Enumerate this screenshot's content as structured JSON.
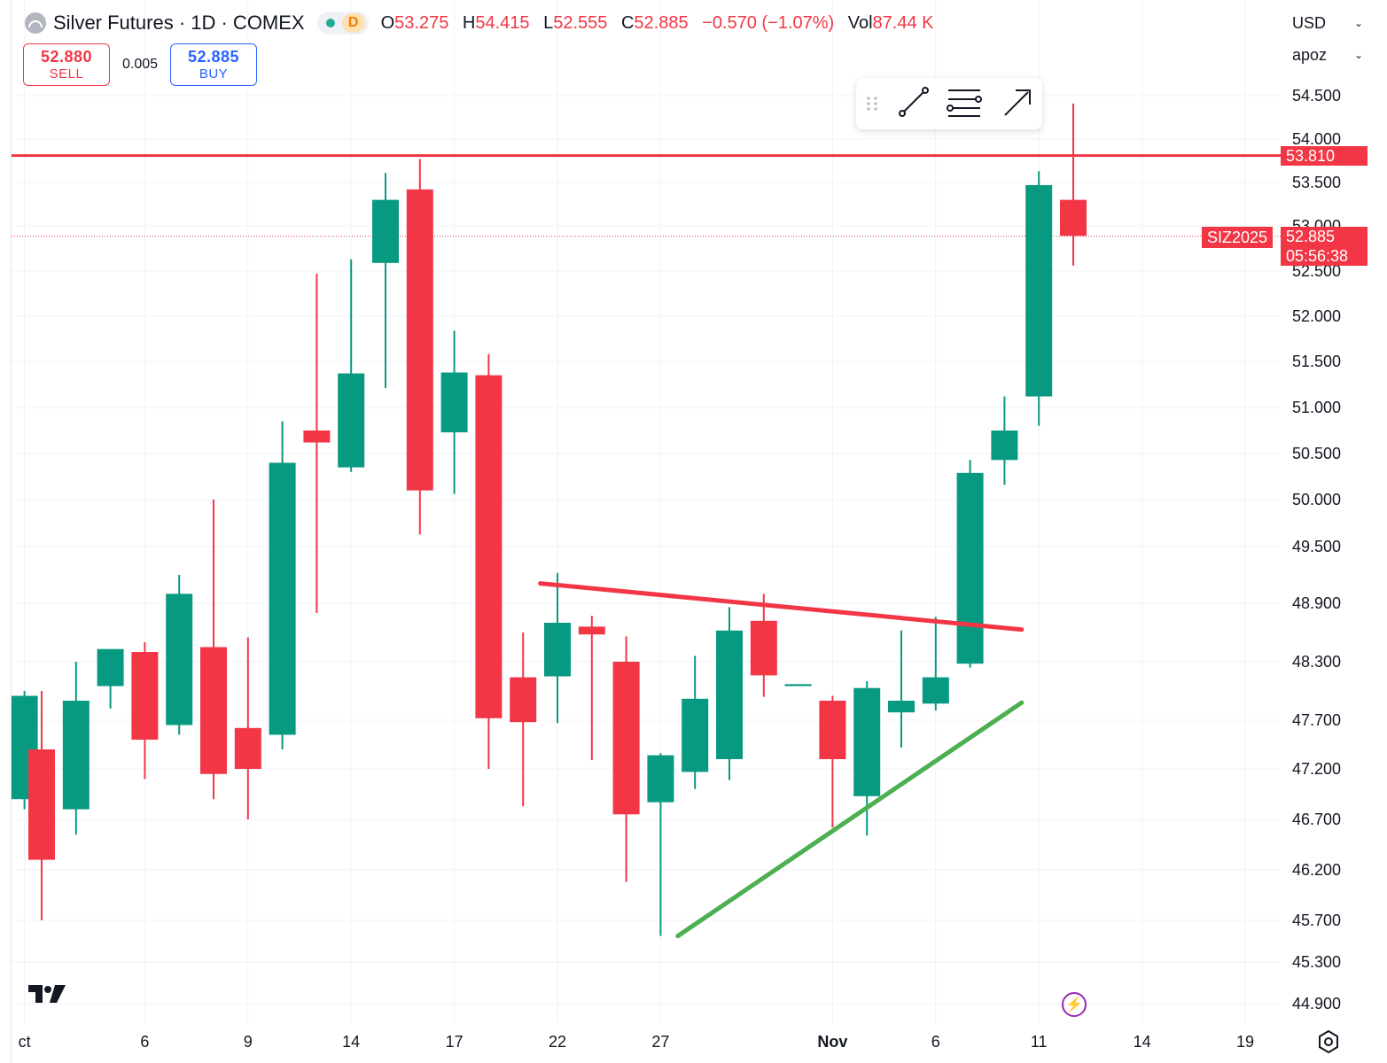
{
  "header": {
    "symbol_title": "Silver Futures · 1D · COMEX",
    "interval_badge": "D",
    "open_key": "O",
    "open": "53.275",
    "high_key": "H",
    "high": "54.415",
    "low_key": "L",
    "low": "52.555",
    "close_key": "C",
    "close": "52.885",
    "change": "−0.570 (−1.07%)",
    "vol_key": "Vol",
    "volume": "87.44 K"
  },
  "trade": {
    "sell_price": "52.880",
    "sell_label": "SELL",
    "spread": "0.005",
    "buy_price": "52.885",
    "buy_label": "BUY"
  },
  "selectors": {
    "currency": "USD",
    "unit": "apoz"
  },
  "price_tags": {
    "hline_value": "53.810",
    "symbol": "SIZ2025",
    "last_price": "52.885",
    "countdown": "05:56:38"
  },
  "icons": {
    "drag": "drag-handle-icon",
    "trend": "trend-line-icon",
    "fib": "fib-retracement-icon",
    "arrow": "arrow-tool-icon",
    "logo": "tradingview-logo-icon",
    "flash": "lightning-icon",
    "settings": "settings-icon"
  },
  "colors": {
    "up": "#089981",
    "down": "#f23645",
    "support": "#4caf50",
    "resistance": "#f23645"
  },
  "chart_data": {
    "type": "candlestick",
    "y_ticks": [
      "54.500",
      "54.000",
      "53.500",
      "53.000",
      "52.500",
      "52.000",
      "51.500",
      "51.000",
      "50.500",
      "50.000",
      "49.500",
      "48.900",
      "48.300",
      "47.700",
      "47.200",
      "46.700",
      "46.200",
      "45.700",
      "45.300",
      "44.900"
    ],
    "x_ticks": [
      {
        "label": "ct",
        "x": -0.5
      },
      {
        "label": "6",
        "x": 3
      },
      {
        "label": "9",
        "x": 6
      },
      {
        "label": "14",
        "x": 9
      },
      {
        "label": "17",
        "x": 12
      },
      {
        "label": "22",
        "x": 15
      },
      {
        "label": "27",
        "x": 18
      },
      {
        "label": "Nov",
        "x": 23,
        "bold": true
      },
      {
        "label": "6",
        "x": 26
      },
      {
        "label": "11",
        "x": 29
      },
      {
        "label": "14",
        "x": 32
      },
      {
        "label": "19",
        "x": 35
      }
    ],
    "candles": [
      {
        "x": -0.5,
        "o": 46.9,
        "h": 48.0,
        "l": 46.8,
        "c": 47.95
      },
      {
        "x": 0,
        "o": 47.4,
        "h": 48.0,
        "l": 45.7,
        "c": 46.3
      },
      {
        "x": 1,
        "o": 46.8,
        "h": 48.3,
        "l": 46.55,
        "c": 47.9
      },
      {
        "x": 2,
        "o": 48.05,
        "h": 48.37,
        "l": 47.82,
        "c": 48.43
      },
      {
        "x": 3,
        "o": 48.4,
        "h": 48.5,
        "l": 47.1,
        "c": 47.5
      },
      {
        "x": 4,
        "o": 47.65,
        "h": 49.2,
        "l": 47.55,
        "c": 49.0
      },
      {
        "x": 5,
        "o": 48.45,
        "h": 50.0,
        "l": 46.9,
        "c": 47.15
      },
      {
        "x": 6,
        "o": 47.62,
        "h": 48.55,
        "l": 46.7,
        "c": 47.2
      },
      {
        "x": 7,
        "o": 47.55,
        "h": 50.85,
        "l": 47.4,
        "c": 50.4
      },
      {
        "x": 8,
        "o": 50.75,
        "h": 52.47,
        "l": 48.8,
        "c": 50.62
      },
      {
        "x": 9,
        "o": 50.35,
        "h": 52.63,
        "l": 50.3,
        "c": 51.37
      },
      {
        "x": 10,
        "o": 52.59,
        "h": 53.61,
        "l": 51.21,
        "c": 53.3
      },
      {
        "x": 11,
        "o": 53.42,
        "h": 53.77,
        "l": 49.63,
        "c": 50.1
      },
      {
        "x": 12,
        "o": 50.73,
        "h": 51.84,
        "l": 50.06,
        "c": 51.38
      },
      {
        "x": 13,
        "o": 51.35,
        "h": 51.58,
        "l": 47.2,
        "c": 47.72
      },
      {
        "x": 14,
        "o": 48.14,
        "h": 48.6,
        "l": 46.83,
        "c": 47.68
      },
      {
        "x": 15,
        "o": 48.15,
        "h": 49.22,
        "l": 47.67,
        "c": 48.7
      },
      {
        "x": 16,
        "o": 48.66,
        "h": 48.77,
        "l": 47.29,
        "c": 48.58
      },
      {
        "x": 17,
        "o": 48.3,
        "h": 48.56,
        "l": 46.08,
        "c": 46.75
      },
      {
        "x": 18,
        "o": 46.87,
        "h": 47.36,
        "l": 45.55,
        "c": 47.34
      },
      {
        "x": 19,
        "o": 47.17,
        "h": 48.36,
        "l": 47.0,
        "c": 47.92
      },
      {
        "x": 20,
        "o": 47.3,
        "h": 48.86,
        "l": 47.09,
        "c": 48.62
      },
      {
        "x": 21,
        "o": 48.72,
        "h": 49.0,
        "l": 47.94,
        "c": 48.16
      },
      {
        "x": 22,
        "o": 48.05,
        "h": 48.05,
        "l": 48.05,
        "c": 48.07
      },
      {
        "x": 23,
        "o": 47.9,
        "h": 47.95,
        "l": 46.62,
        "c": 47.3
      },
      {
        "x": 24,
        "o": 46.93,
        "h": 48.1,
        "l": 46.54,
        "c": 48.03
      },
      {
        "x": 25,
        "o": 47.78,
        "h": 48.62,
        "l": 47.42,
        "c": 47.9
      },
      {
        "x": 26,
        "o": 47.87,
        "h": 48.76,
        "l": 47.8,
        "c": 48.14
      },
      {
        "x": 27,
        "o": 48.28,
        "h": 50.43,
        "l": 48.24,
        "c": 50.29
      },
      {
        "x": 28,
        "o": 50.43,
        "h": 51.12,
        "l": 50.16,
        "c": 50.75
      },
      {
        "x": 29,
        "o": 51.12,
        "h": 53.63,
        "l": 50.8,
        "c": 53.47
      },
      {
        "x": 30,
        "o": 53.3,
        "h": 54.41,
        "l": 52.56,
        "c": 52.89
      }
    ],
    "horizontal_line": 53.81,
    "last_price": 52.885,
    "resistance_line": {
      "x1": 14.5,
      "y1": 49.11,
      "x2": 28.5,
      "y2": 48.63
    },
    "support_line": {
      "x1": 18.5,
      "y1": 45.55,
      "x2": 28.5,
      "y2": 47.88
    }
  }
}
